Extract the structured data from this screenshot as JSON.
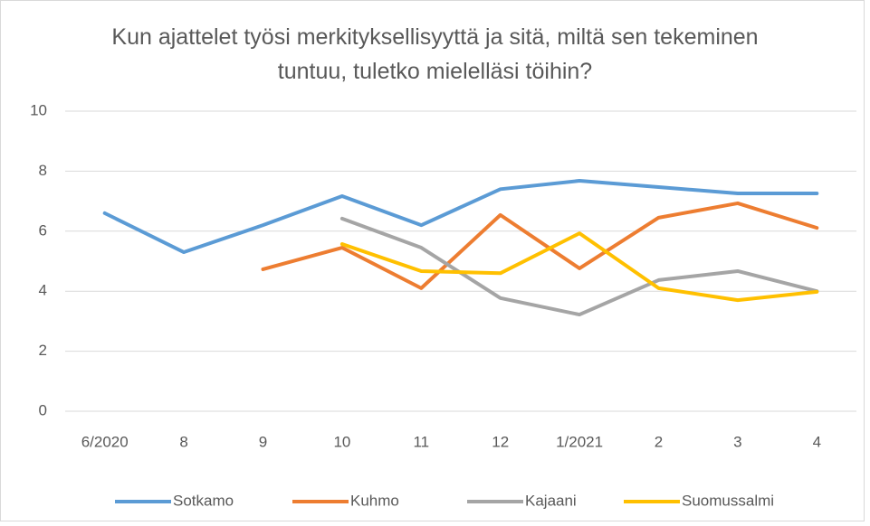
{
  "chart_data": {
    "type": "line",
    "title": "Kun ajattelet työsi merkityksellisyyttä ja sitä, miltä sen tekeminen tuntuu, tuletko mielelläsi töihin?",
    "categories": [
      "6/2020",
      "8",
      "9",
      "10",
      "11",
      "12",
      "1/2021",
      "2",
      "3",
      "4"
    ],
    "series": [
      {
        "name": "Sotkamo",
        "color": "#5b9bd5",
        "values": [
          6.6,
          5.3,
          6.2,
          7.17,
          6.2,
          7.4,
          7.68,
          7.47,
          7.26,
          7.26
        ]
      },
      {
        "name": "Kuhmo",
        "color": "#ed7d31",
        "values": [
          null,
          null,
          4.73,
          5.45,
          4.1,
          6.54,
          4.76,
          6.45,
          6.93,
          6.11
        ]
      },
      {
        "name": "Kajaani",
        "color": "#a5a5a5",
        "values": [
          null,
          null,
          null,
          6.42,
          5.45,
          3.77,
          3.22,
          4.37,
          4.67,
          4.0
        ]
      },
      {
        "name": "Suomussalmi",
        "color": "#ffc000",
        "values": [
          null,
          null,
          null,
          5.57,
          4.67,
          4.6,
          5.93,
          4.1,
          3.7,
          3.98
        ]
      }
    ],
    "ylim": [
      0,
      10
    ],
    "yticks": [
      0,
      2,
      4,
      6,
      8,
      10
    ],
    "grid": true,
    "legend": "bottom"
  }
}
